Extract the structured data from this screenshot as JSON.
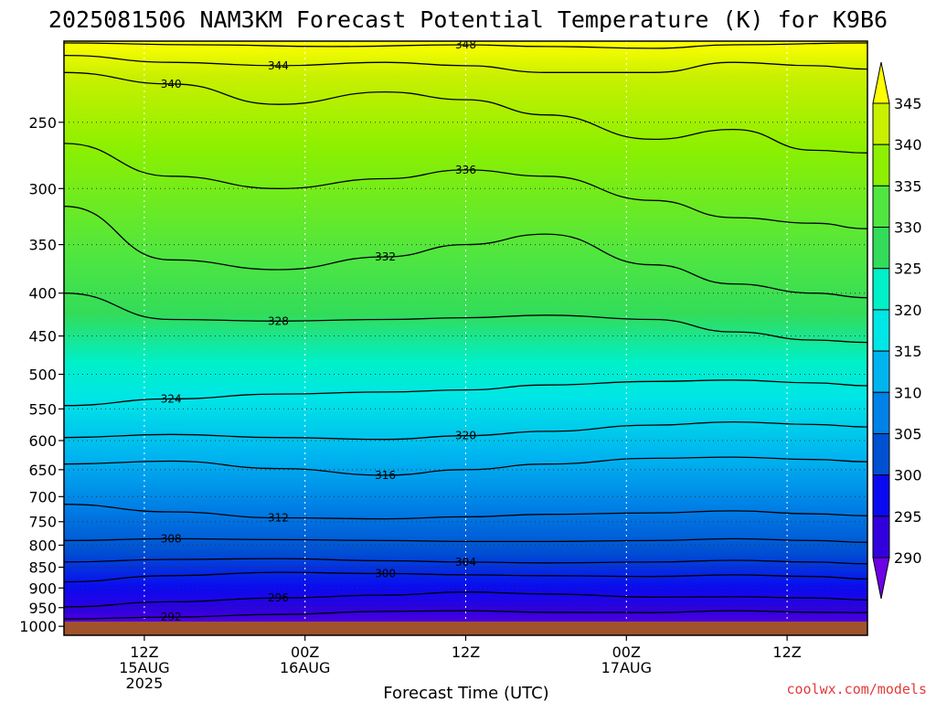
{
  "chart_data": {
    "type": "heatmap",
    "title": "2025081506 NAM3KM Forecast Potential Temperature (K) for K9B6",
    "xlabel": "Forecast Time (UTC)",
    "watermark": "coolwx.com/models",
    "x_ticks": [
      {
        "lines": [
          "12Z",
          "15AUG",
          "2025"
        ],
        "hour": 6
      },
      {
        "lines": [
          "00Z",
          "16AUG"
        ],
        "hour": 18
      },
      {
        "lines": [
          "12Z"
        ],
        "hour": 30
      },
      {
        "lines": [
          "00Z",
          "17AUG"
        ],
        "hour": 42
      },
      {
        "lines": [
          "12Z"
        ],
        "hour": 54
      }
    ],
    "xlim_hours": [
      0,
      60
    ],
    "y_ticks": [
      250,
      300,
      350,
      400,
      450,
      500,
      550,
      600,
      650,
      700,
      750,
      800,
      850,
      900,
      950,
      1000
    ],
    "ylim_hpa": [
      200,
      1025
    ],
    "y_scale": "log",
    "colorbar": {
      "labels": [
        345,
        340,
        335,
        330,
        325,
        320,
        315,
        310,
        305,
        300,
        295,
        290
      ],
      "colors": [
        "#ffff00",
        "#c8f000",
        "#8cf000",
        "#50e640",
        "#32dc5a",
        "#00f0c8",
        "#00e6e6",
        "#00b4f0",
        "#0082e6",
        "#0050d2",
        "#0a0af0",
        "#3200dc",
        "#6e00e6"
      ]
    },
    "grid": true,
    "ground_color": "#a0522d",
    "contours": [
      {
        "label": "292",
        "points": [
          [
            0,
            980
          ],
          [
            8,
            975
          ],
          [
            16,
            968
          ],
          [
            24,
            960
          ],
          [
            30,
            958
          ],
          [
            36,
            962
          ],
          [
            44,
            963
          ],
          [
            50,
            958
          ],
          [
            56,
            962
          ],
          [
            60,
            963
          ]
        ]
      },
      {
        "label": "296",
        "points": [
          [
            0,
            948
          ],
          [
            8,
            935
          ],
          [
            16,
            925
          ],
          [
            24,
            918
          ],
          [
            30,
            910
          ],
          [
            36,
            915
          ],
          [
            44,
            923
          ],
          [
            50,
            922
          ],
          [
            56,
            925
          ],
          [
            60,
            930
          ]
        ]
      },
      {
        "label": "300",
        "points": [
          [
            0,
            885
          ],
          [
            8,
            870
          ],
          [
            16,
            862
          ],
          [
            24,
            865
          ],
          [
            30,
            868
          ],
          [
            36,
            870
          ],
          [
            44,
            872
          ],
          [
            50,
            868
          ],
          [
            56,
            872
          ],
          [
            60,
            878
          ]
        ]
      },
      {
        "label": "304",
        "points": [
          [
            0,
            838
          ],
          [
            8,
            832
          ],
          [
            16,
            830
          ],
          [
            24,
            835
          ],
          [
            30,
            838
          ],
          [
            36,
            840
          ],
          [
            44,
            838
          ],
          [
            50,
            834
          ],
          [
            56,
            838
          ],
          [
            60,
            842
          ]
        ]
      },
      {
        "label": "308",
        "points": [
          [
            0,
            790
          ],
          [
            8,
            786
          ],
          [
            16,
            788
          ],
          [
            24,
            790
          ],
          [
            30,
            792
          ],
          [
            36,
            792
          ],
          [
            44,
            790
          ],
          [
            50,
            786
          ],
          [
            56,
            790
          ],
          [
            60,
            794
          ]
        ]
      },
      {
        "label": "312",
        "points": [
          [
            0,
            715
          ],
          [
            8,
            730
          ],
          [
            16,
            742
          ],
          [
            24,
            744
          ],
          [
            30,
            740
          ],
          [
            36,
            735
          ],
          [
            44,
            732
          ],
          [
            50,
            728
          ],
          [
            56,
            734
          ],
          [
            60,
            738
          ]
        ]
      },
      {
        "label": "316",
        "points": [
          [
            0,
            640
          ],
          [
            8,
            635
          ],
          [
            16,
            648
          ],
          [
            24,
            660
          ],
          [
            30,
            650
          ],
          [
            36,
            640
          ],
          [
            44,
            630
          ],
          [
            50,
            628
          ],
          [
            56,
            632
          ],
          [
            60,
            636
          ]
        ]
      },
      {
        "label": "320",
        "points": [
          [
            0,
            595
          ],
          [
            8,
            590
          ],
          [
            16,
            595
          ],
          [
            24,
            598
          ],
          [
            30,
            592
          ],
          [
            36,
            585
          ],
          [
            44,
            575
          ],
          [
            50,
            570
          ],
          [
            56,
            574
          ],
          [
            60,
            578
          ]
        ]
      },
      {
        "label": "324",
        "points": [
          [
            0,
            545
          ],
          [
            8,
            535
          ],
          [
            16,
            528
          ],
          [
            24,
            525
          ],
          [
            30,
            522
          ],
          [
            36,
            515
          ],
          [
            44,
            510
          ],
          [
            50,
            508
          ],
          [
            56,
            512
          ],
          [
            60,
            516
          ]
        ]
      },
      {
        "label": "328",
        "points": [
          [
            0,
            400
          ],
          [
            8,
            430
          ],
          [
            16,
            432
          ],
          [
            24,
            430
          ],
          [
            30,
            428
          ],
          [
            36,
            425
          ],
          [
            44,
            430
          ],
          [
            50,
            445
          ],
          [
            56,
            455
          ],
          [
            60,
            458
          ]
        ]
      },
      {
        "label": "332",
        "points": [
          [
            0,
            315
          ],
          [
            8,
            365
          ],
          [
            16,
            375
          ],
          [
            24,
            362
          ],
          [
            30,
            350
          ],
          [
            36,
            340
          ],
          [
            44,
            370
          ],
          [
            50,
            390
          ],
          [
            56,
            400
          ],
          [
            60,
            405
          ]
        ]
      },
      {
        "label": "336",
        "points": [
          [
            0,
            265
          ],
          [
            8,
            290
          ],
          [
            16,
            300
          ],
          [
            24,
            292
          ],
          [
            30,
            285
          ],
          [
            36,
            290
          ],
          [
            44,
            310
          ],
          [
            50,
            325
          ],
          [
            56,
            330
          ],
          [
            60,
            335
          ]
        ]
      },
      {
        "label": "340",
        "points": [
          [
            0,
            218
          ],
          [
            8,
            225
          ],
          [
            16,
            238
          ],
          [
            24,
            230
          ],
          [
            30,
            235
          ],
          [
            36,
            245
          ],
          [
            44,
            262
          ],
          [
            50,
            255
          ],
          [
            56,
            270
          ],
          [
            60,
            272
          ]
        ]
      },
      {
        "label": "344",
        "points": [
          [
            0,
            208
          ],
          [
            8,
            212
          ],
          [
            16,
            214
          ],
          [
            24,
            212
          ],
          [
            30,
            214
          ],
          [
            36,
            218
          ],
          [
            44,
            218
          ],
          [
            50,
            212
          ],
          [
            56,
            214
          ],
          [
            60,
            216
          ]
        ]
      },
      {
        "label": "348",
        "points": [
          [
            0,
            201
          ],
          [
            10,
            202
          ],
          [
            20,
            203
          ],
          [
            30,
            202
          ],
          [
            36,
            203
          ],
          [
            44,
            204
          ],
          [
            50,
            202
          ],
          [
            60,
            201
          ]
        ]
      }
    ]
  }
}
